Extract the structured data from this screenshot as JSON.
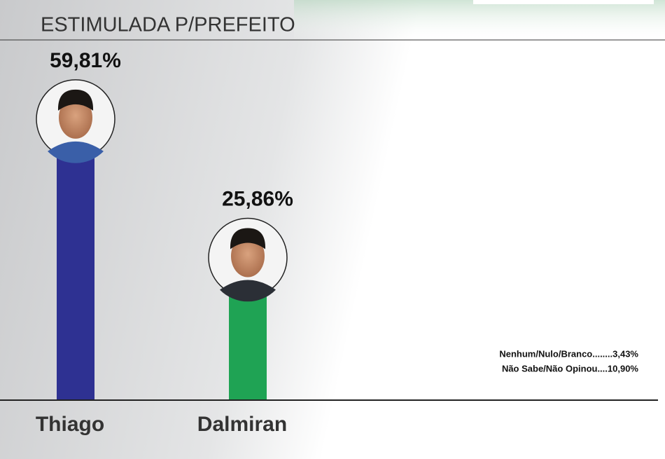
{
  "chart_data": {
    "type": "bar",
    "title": "ESTIMULADA P/PREFEITO",
    "categories": [
      "Thiago",
      "Dalmiran"
    ],
    "values": [
      59.81,
      25.86
    ],
    "value_labels": [
      "59,81%",
      "25,86%"
    ],
    "colors": [
      "#2e3192",
      "#1fa354"
    ],
    "annotations": [
      "Nenhum/Nulo/Branco........3,43%",
      "Não Sabe/Não Opinou....10,90%"
    ]
  }
}
